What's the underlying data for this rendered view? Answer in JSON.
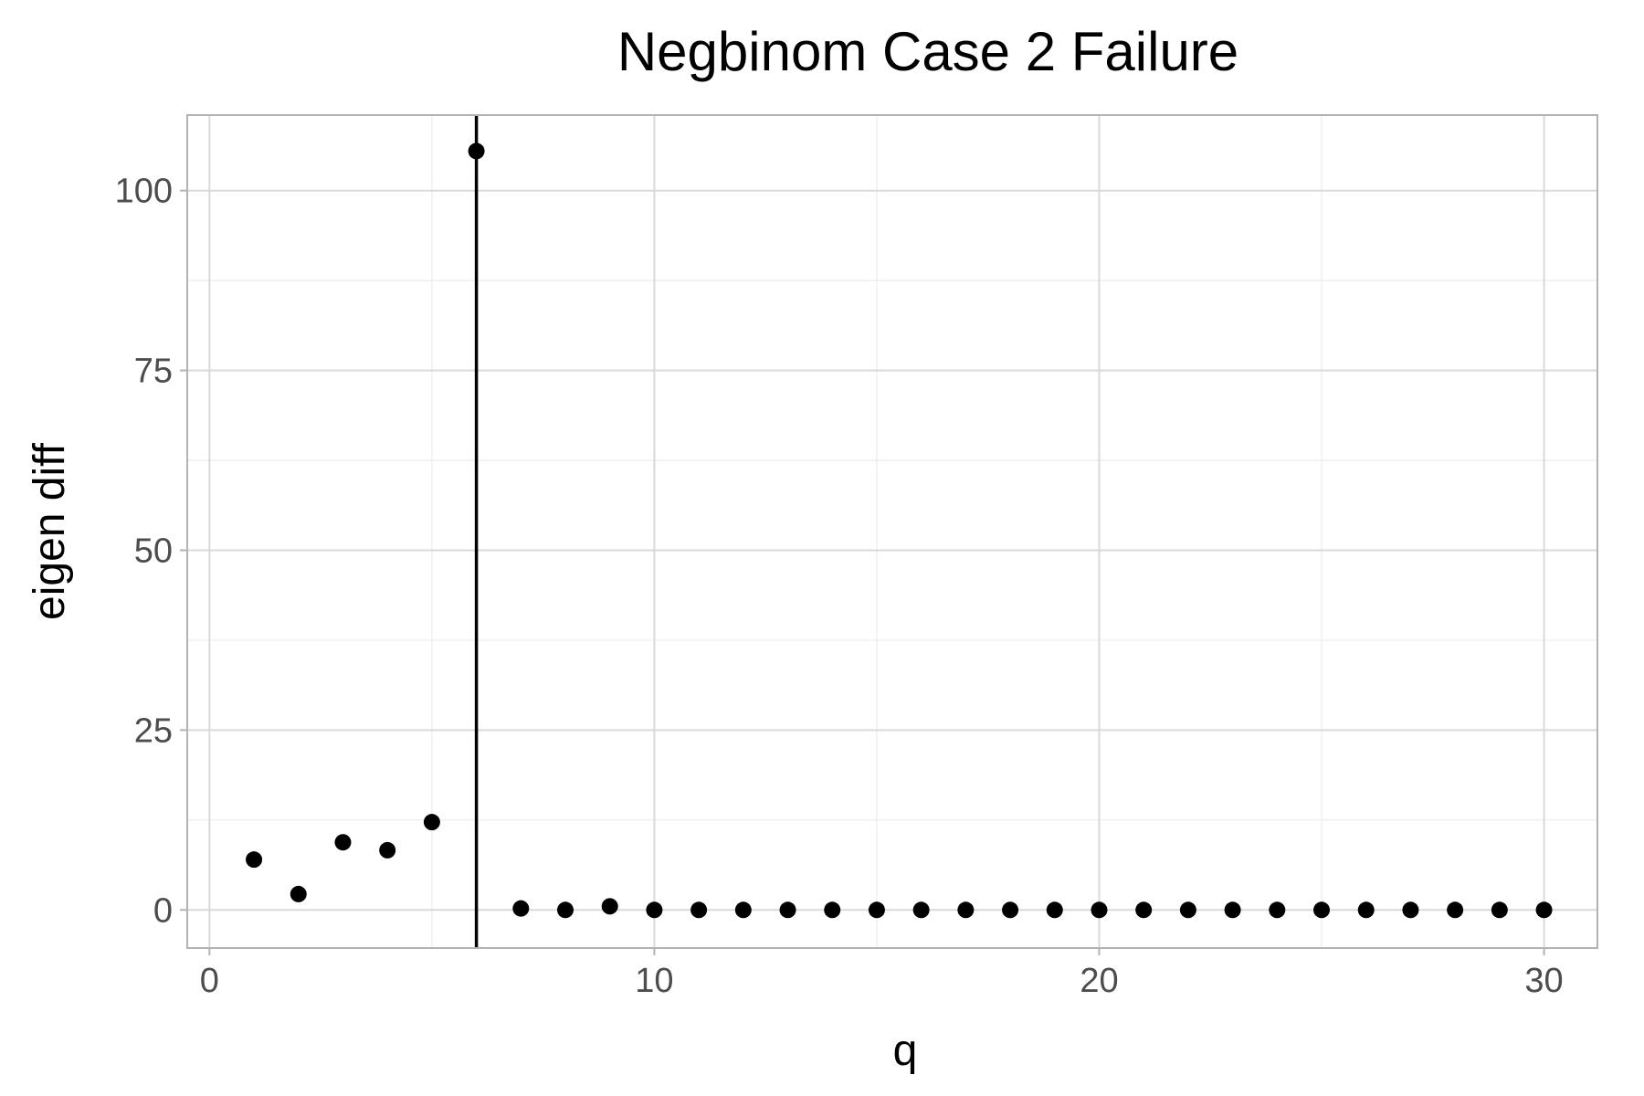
{
  "chart_data": {
    "type": "scatter",
    "title": "Negbinom Case 2 Failure",
    "xlabel": "q",
    "ylabel": "eigen diff",
    "xlim": [
      -0.5,
      31.2
    ],
    "ylim": [
      -5.3,
      110.5
    ],
    "x_ticks": [
      0,
      10,
      20,
      30
    ],
    "y_ticks": [
      0,
      25,
      50,
      75,
      100
    ],
    "x_tick_labels": [
      "0",
      "10",
      "20",
      "30"
    ],
    "y_tick_labels": [
      "0",
      "25",
      "50",
      "75",
      "100"
    ],
    "grid": true,
    "legend": "none",
    "vline_x": 6,
    "series": [
      {
        "x": [
          1,
          2,
          3,
          4,
          5,
          6,
          7,
          8,
          9,
          10,
          11,
          12,
          13,
          14,
          15,
          16,
          17,
          18,
          19,
          20,
          21,
          22,
          23,
          24,
          25,
          26,
          27,
          28,
          29,
          30
        ],
        "y": [
          7.0,
          2.2,
          9.4,
          8.3,
          12.2,
          105.5,
          0.2,
          0.0,
          0.5,
          0.0,
          0.0,
          0.0,
          0.0,
          0.0,
          0.0,
          0.0,
          0.0,
          0.0,
          0.0,
          0.0,
          0.0,
          0.0,
          0.0,
          0.0,
          0.0,
          0.0,
          0.0,
          0.0,
          0.0,
          0.0
        ]
      }
    ]
  }
}
